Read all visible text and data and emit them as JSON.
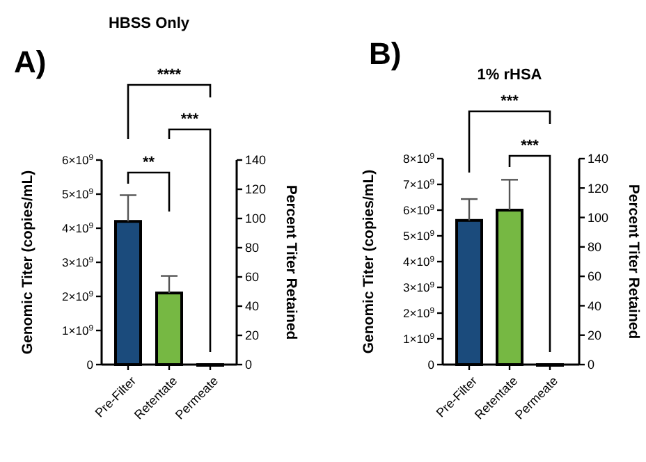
{
  "chart_data": [
    {
      "type": "bar",
      "title": "HBSS Only",
      "categories": [
        "Pre-Filter",
        "Retentate",
        "Permeate"
      ],
      "values": [
        4200000000,
        2100000000,
        0
      ],
      "colors": [
        "#1b4b7c",
        "#76b843",
        "#76b843"
      ],
      "errors": [
        [
          4200000000,
          4970000000
        ],
        [
          2100000000,
          2600000000
        ],
        null
      ],
      "ylabel": "Genomic Titer (copies/mL)",
      "y2label": "Percent Titer Retained",
      "ylim": [
        0,
        6000000000
      ],
      "yticks": [
        0,
        {
          "value": 1000000000,
          "label": "1×10$^{9}$"
        },
        {
          "value": 2000000000,
          "label": "2×10$^{9}$"
        },
        {
          "value": 3000000000,
          "label": "3×10$^{9}$"
        },
        {
          "value": 4000000000,
          "label": "4×10$^{9}$"
        },
        {
          "value": 5000000000,
          "label": "5×10$^{9}$"
        },
        {
          "value": 6000000000,
          "label": "6×10$^{9}$"
        }
      ],
      "y2lim": [
        0,
        140
      ],
      "y2ticks": [
        0,
        20,
        40,
        60,
        80,
        100,
        120,
        140
      ],
      "grid": false,
      "annotations": [
        "A)",
        "**",
        "***",
        "****"
      ]
    },
    {
      "type": "bar",
      "title": "1% rHSA",
      "categories": [
        "Pre-Filter",
        "Retentate",
        "Permeate"
      ],
      "values": [
        5600000000,
        6000000000,
        0
      ],
      "colors": [
        "#1b4b7c",
        "#76b843",
        "#76b843"
      ],
      "errors": [
        [
          5600000000,
          6430000000
        ],
        [
          6000000000,
          7180000000
        ],
        null
      ],
      "ylabel": "Genomic Titer (copies/mL)",
      "y2label": "Percent Titer Retained",
      "ylim": [
        0,
        8000000000
      ],
      "yticks": [
        0,
        {
          "value": 1000000000,
          "label": "1×10$^{9}$"
        },
        {
          "value": 2000000000,
          "label": "2×10$^{9}$"
        },
        {
          "value": 3000000000,
          "label": "3×10$^{9}$"
        },
        {
          "value": 4000000000,
          "label": "4×10$^{9}$"
        },
        {
          "value": 5000000000,
          "label": "5×10$^{9}$"
        },
        {
          "value": 6000000000,
          "label": "6×10$^{9}$"
        },
        {
          "value": 7000000000,
          "label": "7×10$^{9}$"
        },
        {
          "value": 8000000000,
          "label": "8×10$^{9}$"
        }
      ],
      "y2lim": [
        0,
        140
      ],
      "y2ticks": [
        0,
        20,
        40,
        60,
        80,
        100,
        120,
        140
      ],
      "grid": false,
      "annotations": [
        "B)",
        "***",
        "***"
      ]
    }
  ]
}
